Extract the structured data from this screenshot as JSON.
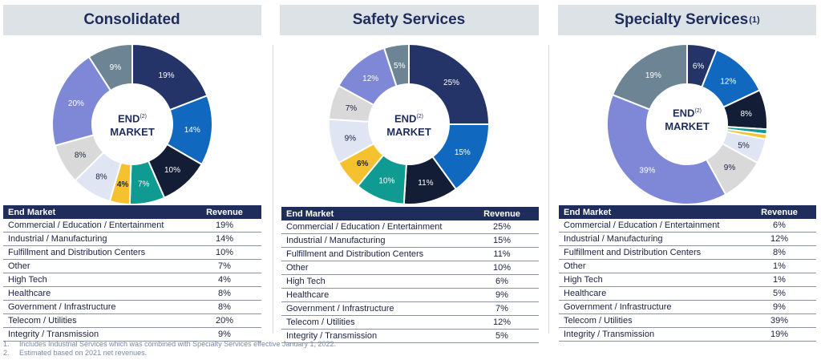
{
  "chart_data": [
    {
      "type": "pie",
      "title": "Consolidated",
      "title_sup": "",
      "center_label": [
        "END",
        "MARKET"
      ],
      "center_sup": "(2)",
      "table_headers": [
        "End Market",
        "Revenue"
      ],
      "categories": [
        "Commercial / Education / Entertainment",
        "Industrial / Manufacturing",
        "Fulfillment and Distribution Centers",
        "Other",
        "High Tech",
        "Healthcare",
        "Government / Infrastructure",
        "Telecom / Utilities",
        "Integrity / Transmission"
      ],
      "values": [
        19,
        14,
        10,
        7,
        4,
        8,
        8,
        20,
        9
      ],
      "value_labels": [
        "19%",
        "14%",
        "10%",
        "7%",
        "4%",
        "8%",
        "8%",
        "20%",
        "9%"
      ]
    },
    {
      "type": "pie",
      "title": "Safety Services",
      "title_sup": "",
      "center_label": [
        "END",
        "MARKET"
      ],
      "center_sup": "(2)",
      "table_headers": [
        "End Market",
        "Revenue"
      ],
      "categories": [
        "Commercial / Education / Entertainment",
        "Industrial / Manufacturing",
        "Fulfillment and Distribution Centers",
        "Other",
        "High Tech",
        "Healthcare",
        "Government / Infrastructure",
        "Telecom / Utilities",
        "Integrity / Transmission"
      ],
      "values": [
        25,
        15,
        11,
        10,
        6,
        9,
        7,
        12,
        5
      ],
      "value_labels": [
        "25%",
        "15%",
        "11%",
        "10%",
        "6%",
        "9%",
        "7%",
        "12%",
        "5%"
      ]
    },
    {
      "type": "pie",
      "title": "Specialty Services",
      "title_sup": "(1)",
      "center_label": [
        "END",
        "MARKET"
      ],
      "center_sup": "(2)",
      "table_headers": [
        "End Market",
        "Revenue"
      ],
      "categories": [
        "Commercial / Education / Entertainment",
        "Industrial / Manufacturing",
        "Fulfillment and Distribution Centers",
        "Other",
        "High Tech",
        "Healthcare",
        "Government / Infrastructure",
        "Telecom / Utilities",
        "Integrity / Transmission"
      ],
      "values": [
        6,
        12,
        8,
        1,
        1,
        5,
        9,
        39,
        19
      ],
      "value_labels": [
        "6%",
        "12%",
        "8%",
        "1%",
        "1%",
        "5%",
        "9%",
        "39%",
        "19%"
      ]
    }
  ],
  "slice_colors": [
    "#243368",
    "#1068bf",
    "#141d36",
    "#0f9a92",
    "#f6c12e",
    "#dfe5f2",
    "#d9d9d9",
    "#7f88d6",
    "#6d8495"
  ],
  "footnotes": [
    {
      "num": "1.",
      "text": "Includes Industrial Services which was combined with Specialty Services effective January 1, 2022."
    },
    {
      "num": "2.",
      "text": "Estimated based on 2021 net revenues."
    }
  ]
}
